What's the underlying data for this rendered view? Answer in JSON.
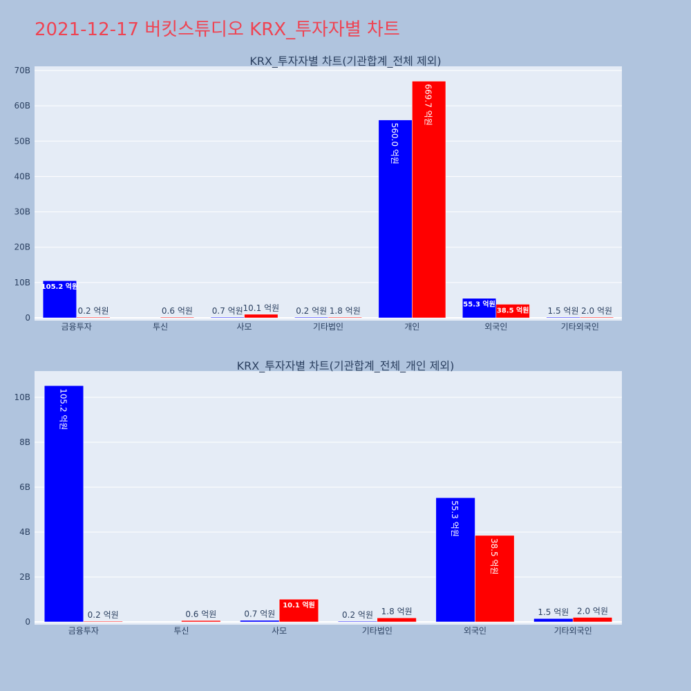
{
  "page": {
    "title": "2021-12-17 버킷스튜디오 KRX_투자자별 차트"
  },
  "colors": {
    "background": "#b0c4de",
    "plot_bg": "#e5ecf6",
    "title": "#ef4352",
    "buy": "#0000ff",
    "sell": "#ff0000"
  },
  "chart_data": [
    {
      "type": "bar",
      "title": "KRX_투자자별 차트(기관합계_전체 제외)",
      "categories": [
        "금융투자",
        "투신",
        "사모",
        "기타법인",
        "개인",
        "외국인",
        "기타외국인"
      ],
      "ylim": [
        0,
        70
      ],
      "yticks": [
        0,
        10,
        20,
        30,
        40,
        50,
        60,
        70
      ],
      "ytick_labels": [
        "0",
        "10B",
        "20B",
        "30B",
        "40B",
        "50B",
        "60B",
        "70B"
      ],
      "grid": true,
      "series": [
        {
          "color": "#0000ff",
          "values": [
            10.52,
            null,
            0.07,
            0.02,
            56.0,
            5.53,
            0.15
          ],
          "labels": [
            "105.2 억원",
            "",
            "0.7 억원",
            "0.2 억원",
            "560.0 억원",
            "55.3 억원",
            "1.5 억원"
          ]
        },
        {
          "color": "#ff0000",
          "values": [
            0.02,
            0.06,
            1.01,
            0.18,
            66.97,
            3.85,
            0.2
          ],
          "labels": [
            "0.2 억원",
            "0.6 억원",
            "10.1 억원",
            "1.8 억원",
            "669.7 억원",
            "38.5 억원",
            "2.0 억원"
          ]
        }
      ]
    },
    {
      "type": "bar",
      "title": "KRX_투자자별 차트(기관합계_전체_개인 제외)",
      "categories": [
        "금융투자",
        "투신",
        "사모",
        "기타법인",
        "외국인",
        "기타외국인"
      ],
      "ylim": [
        0,
        11
      ],
      "yticks": [
        0,
        2,
        4,
        6,
        8,
        10
      ],
      "ytick_labels": [
        "0",
        "2B",
        "4B",
        "6B",
        "8B",
        "10B"
      ],
      "grid": true,
      "series": [
        {
          "color": "#0000ff",
          "values": [
            10.52,
            null,
            0.07,
            0.02,
            5.53,
            0.15
          ],
          "labels": [
            "105.2 억원",
            "",
            "0.7 억원",
            "0.2 억원",
            "55.3 억원",
            "1.5 억원"
          ]
        },
        {
          "color": "#ff0000",
          "values": [
            0.02,
            0.06,
            1.01,
            0.18,
            3.85,
            0.2
          ],
          "labels": [
            "0.2 억원",
            "0.6 억원",
            "10.1 억원",
            "1.8 억원",
            "38.5 억원",
            "2.0 억원"
          ]
        }
      ]
    }
  ]
}
